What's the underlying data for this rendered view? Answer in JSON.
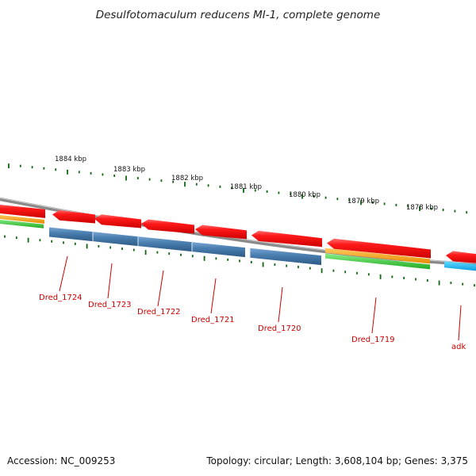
{
  "title": "Desulfotomaculum reducens MI-1, complete genome",
  "footer": {
    "accession": "Accession: NC_009253",
    "summary": "Topology: circular; Length: 3,608,104 bp; Genes: 3,375"
  },
  "ruler": {
    "labels": [
      "1884 kbp",
      "1883 kbp",
      "1882 kbp",
      "1881 kbp",
      "1880 kbp",
      "1879 kbp",
      "1878 kbp"
    ]
  },
  "genes": [
    {
      "id": "Dred_1724",
      "label": "Dred_1724",
      "strand": "reverse",
      "tracks": [
        "cds",
        "product"
      ]
    },
    {
      "id": "Dred_1723",
      "label": "Dred_1723",
      "strand": "reverse",
      "tracks": [
        "cds",
        "product"
      ]
    },
    {
      "id": "Dred_1722",
      "label": "Dred_1722",
      "strand": "reverse",
      "tracks": [
        "cds",
        "product"
      ]
    },
    {
      "id": "Dred_1721",
      "label": "Dred_1721",
      "strand": "reverse",
      "tracks": [
        "cds",
        "product"
      ]
    },
    {
      "id": "Dred_1720",
      "label": "Dred_1720",
      "strand": "reverse",
      "tracks": [
        "cds",
        "product"
      ]
    },
    {
      "id": "Dred_1719",
      "label": "Dred_1719",
      "strand": "reverse",
      "tracks": [
        "cds",
        "cog-orange",
        "cog-green"
      ]
    },
    {
      "id": "adk",
      "label": "adk",
      "strand": "reverse",
      "tracks": [
        "cds",
        "cyan"
      ]
    }
  ],
  "colors": {
    "cds": "#ff0000",
    "product": "#4a7fb0",
    "orange": "#ff9900",
    "green": "#33cc33",
    "cyan": "#11aaee",
    "backbone": "#888888",
    "ticks": "#116611",
    "label": "#cc0000"
  }
}
